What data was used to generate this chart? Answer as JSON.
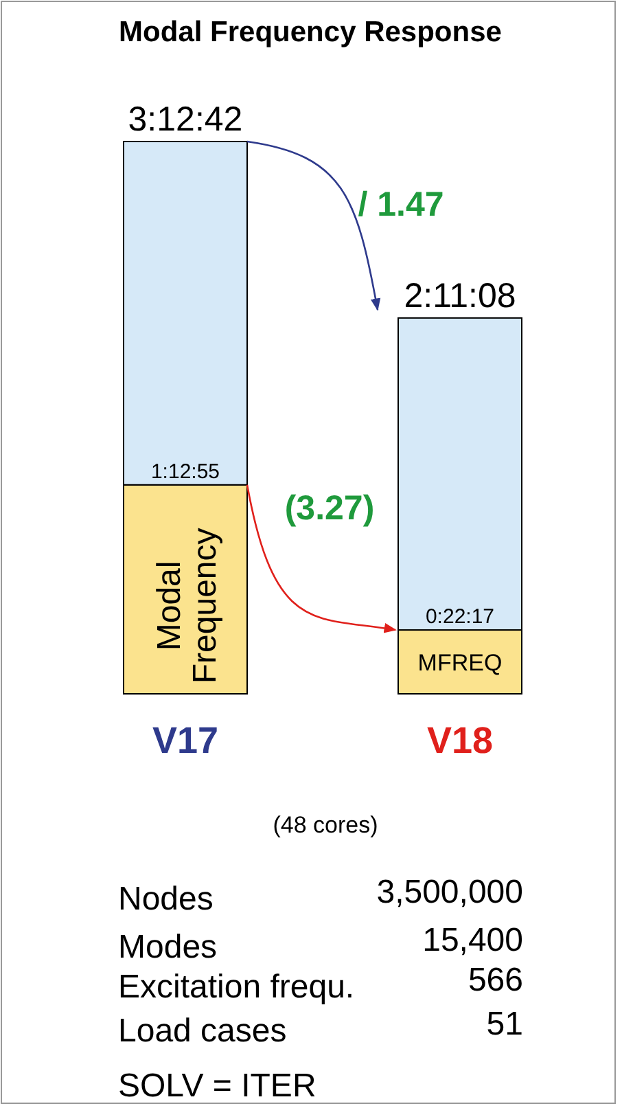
{
  "chart_data": {
    "type": "bar",
    "title": "Modal Frequency Response",
    "categories": [
      "V17",
      "V18"
    ],
    "stacked": true,
    "series": [
      {
        "color": "#fbe38e",
        "values": [
          4375,
          1337
        ],
        "value_labels": [
          "1:12:55",
          "0:22:17"
        ]
      },
      {
        "color": "#d6e9f8",
        "values": [
          7187,
          6531
        ]
      }
    ],
    "totals": [
      "3:12:42",
      "2:11:08"
    ],
    "annotations": [
      "Modal Frequency",
      "MFREQ",
      "/ 1.47",
      "(3.27)",
      "(48 cores)",
      "Nodes",
      "3,500,000",
      "Modes",
      "15,400",
      "Excitation frequ.",
      "566",
      "Load cases",
      "51",
      "SOLV = ITER"
    ]
  }
}
